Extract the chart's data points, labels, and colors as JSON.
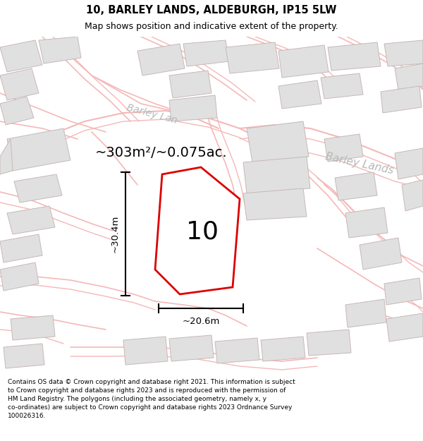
{
  "title_line1": "10, BARLEY LANDS, ALDEBURGH, IP15 5LW",
  "title_line2": "Map shows position and indicative extent of the property.",
  "footer_text": "Contains OS data © Crown copyright and database right 2021. This information is subject\nto Crown copyright and database rights 2023 and is reproduced with the permission of\nHM Land Registry. The polygons (including the associated geometry, namely x, y\nco-ordinates) are subject to Crown copyright and database rights 2023 Ordnance Survey\n100026316.",
  "area_label": "~303m²/~0.075ac.",
  "street_label1": "Barley Lan",
  "street_label2": "Barley Lands",
  "plot_label": "10",
  "dim_h": "~30.4m",
  "dim_w": "~20.6m",
  "bg_color": "#ffffff",
  "map_bg": "#ffffff",
  "title_bg": "#ffffff",
  "footer_bg": "#ffffff",
  "plot_fill": "#ffffff",
  "plot_edge": "#dd0000",
  "road_color": "#f5b8b8",
  "road_edge": "#f0a0a0",
  "building_fill": "#e0e0e0",
  "building_edge": "#c8b8b8",
  "dim_line_color": "#000000",
  "street_color": "#b8b8b8",
  "title_fontsize": 10.5,
  "subtitle_fontsize": 9,
  "footer_fontsize": 6.5
}
